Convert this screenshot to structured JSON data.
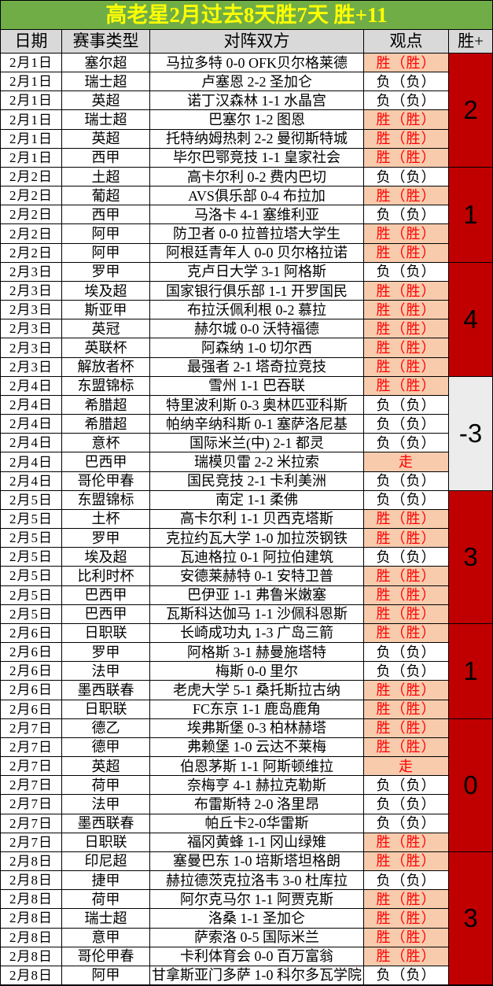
{
  "title": {
    "text": "高老星2月过去8天胜7天 胜+11"
  },
  "columns": {
    "date": "日期",
    "league": "赛事类型",
    "match": "对阵双方",
    "view": "观点",
    "win": "胜+"
  },
  "colors": {
    "title_bg": "#70ad47",
    "title_fg": "#ffff00",
    "header_bg": "#d9d9d9",
    "hit_bg": "#f8cbad",
    "hit_fg": "#ff0000",
    "block_red": "#c00000",
    "block_gray": "#ececec"
  },
  "rows": [
    {
      "date": "2月1日",
      "league": "塞尔超",
      "match": "马拉多特 0-0 OFK贝尔格莱德",
      "view": "胜（胜）",
      "hl": true
    },
    {
      "date": "2月1日",
      "league": "瑞士超",
      "match": "卢塞恩 2-2 圣加仑",
      "view": "负（负）",
      "hl": false
    },
    {
      "date": "2月1日",
      "league": "英超",
      "match": "诺丁汉森林 1-1 水晶宫",
      "view": "负（负）",
      "hl": false
    },
    {
      "date": "2月1日",
      "league": "瑞士超",
      "match": "巴塞尔 1-2 图恩",
      "view": "胜（胜）",
      "hl": true
    },
    {
      "date": "2月1日",
      "league": "英超",
      "match": "托特纳姆热刺 2-2 曼彻斯特城",
      "view": "胜（胜）",
      "hl": true
    },
    {
      "date": "2月1日",
      "league": "西甲",
      "match": "毕尔巴鄂竞技 1-1 皇家社会",
      "view": "胜（胜）",
      "hl": true
    },
    {
      "date": "2月2日",
      "league": "土超",
      "match": "高卡尔利 0-2 费内巴切",
      "view": "负（负）",
      "hl": false
    },
    {
      "date": "2月2日",
      "league": "葡超",
      "match": "AVS俱乐部 0-4 布拉加",
      "view": "胜（胜）",
      "hl": true
    },
    {
      "date": "2月2日",
      "league": "西甲",
      "match": "马洛卡 4-1 塞维利亚",
      "view": "负（负）",
      "hl": false
    },
    {
      "date": "2月2日",
      "league": "阿甲",
      "match": "防卫者 0-0 拉普拉塔大学生",
      "view": "胜（胜）",
      "hl": true
    },
    {
      "date": "2月2日",
      "league": "阿甲",
      "match": "阿根廷青年人 0-0 贝尔格拉诺",
      "view": "胜（胜）",
      "hl": true
    },
    {
      "date": "2月3日",
      "league": "罗甲",
      "match": "克卢日大学 3-1 阿格斯",
      "view": "负（负）",
      "hl": false
    },
    {
      "date": "2月3日",
      "league": "埃及超",
      "match": "国家银行俱乐部 1-1 开罗国民",
      "view": "胜（胜）",
      "hl": true
    },
    {
      "date": "2月3日",
      "league": "斯亚甲",
      "match": "布拉沃佩利根 0-2 慕拉",
      "view": "胜（胜）",
      "hl": true
    },
    {
      "date": "2月3日",
      "league": "英冠",
      "match": "赫尔城 0-0 沃特福德",
      "view": "胜（胜）",
      "hl": true
    },
    {
      "date": "2月3日",
      "league": "英联杯",
      "match": "阿森纳 1-0 切尔西",
      "view": "胜（胜）",
      "hl": true
    },
    {
      "date": "2月3日",
      "league": "解放者杯",
      "match": "最强者 2-1 塔奇拉竞技",
      "view": "胜（胜）",
      "hl": true
    },
    {
      "date": "2月4日",
      "league": "东盟锦标",
      "match": "雪州 1-1 巴吞联",
      "view": "胜（胜）",
      "hl": true
    },
    {
      "date": "2月4日",
      "league": "希腊超",
      "match": "特里波利斯 0-3 奥林匹亚科斯",
      "view": "负（负）",
      "hl": false
    },
    {
      "date": "2月4日",
      "league": "希腊超",
      "match": "帕纳辛纳科斯 0-1 塞萨洛尼基",
      "view": "负（负）",
      "hl": false
    },
    {
      "date": "2月4日",
      "league": "意杯",
      "match": "国际米兰(中) 2-1 都灵",
      "view": "负（负）",
      "hl": false
    },
    {
      "date": "2月4日",
      "league": "巴西甲",
      "match": "瑞模贝雷 2-2 米拉索",
      "view": "走",
      "hl": true
    },
    {
      "date": "2月4日",
      "league": "哥伦甲春",
      "match": "国民竞技 2-1 卡利美洲",
      "view": "负（负）",
      "hl": false
    },
    {
      "date": "2月5日",
      "league": "东盟锦标",
      "match": "南定 1-1 柔佛",
      "view": "负（负）",
      "hl": false
    },
    {
      "date": "2月5日",
      "league": "土杯",
      "match": "高卡尔利 1-1 贝西克塔斯",
      "view": "胜（胜）",
      "hl": true
    },
    {
      "date": "2月5日",
      "league": "罗甲",
      "match": "克拉约瓦大学 1-0 加拉茨钢铁",
      "view": "胜（胜）",
      "hl": true
    },
    {
      "date": "2月5日",
      "league": "埃及超",
      "match": "瓦迪格拉 0-1 阿拉伯建筑",
      "view": "负（负）",
      "hl": false
    },
    {
      "date": "2月5日",
      "league": "比利时杯",
      "match": "安德莱赫特 0-1 安特卫普",
      "view": "胜（胜）",
      "hl": true
    },
    {
      "date": "2月5日",
      "league": "巴西甲",
      "match": "巴伊亚 1-1 弗鲁米嫩塞",
      "view": "胜（胜）",
      "hl": true
    },
    {
      "date": "2月5日",
      "league": "巴西甲",
      "match": "瓦斯科达伽马 1-1 沙佩科恩斯",
      "view": "胜（胜）",
      "hl": true
    },
    {
      "date": "2月6日",
      "league": "日职联",
      "match": "长崎成功丸 1-3 广岛三箭",
      "view": "胜（胜）",
      "hl": true
    },
    {
      "date": "2月6日",
      "league": "罗甲",
      "match": "阿格斯 3-1 赫曼施塔特",
      "view": "负（负）",
      "hl": false
    },
    {
      "date": "2月6日",
      "league": "法甲",
      "match": "梅斯 0-0 里尔",
      "view": "负（负）",
      "hl": false
    },
    {
      "date": "2月6日",
      "league": "墨西联春",
      "match": "老虎大学 5-1 桑托斯拉古纳",
      "view": "胜（胜）",
      "hl": true
    },
    {
      "date": "2月6日",
      "league": "日职联",
      "match": "FC东京 1-1 鹿岛鹿角",
      "view": "胜（胜）",
      "hl": true
    },
    {
      "date": "2月7日",
      "league": "德乙",
      "match": "埃弗斯堡 0-3 柏林赫塔",
      "view": "胜（胜）",
      "hl": true
    },
    {
      "date": "2月7日",
      "league": "德甲",
      "match": "弗赖堡 1-0 云达不莱梅",
      "view": "胜（胜）",
      "hl": true
    },
    {
      "date": "2月7日",
      "league": "英超",
      "match": "伯恩茅斯 1-1 阿斯顿维拉",
      "view": "走",
      "hl": true
    },
    {
      "date": "2月7日",
      "league": "荷甲",
      "match": "奈梅亨 4-1 赫拉克勒斯",
      "view": "负（负）",
      "hl": false
    },
    {
      "date": "2月7日",
      "league": "法甲",
      "match": "布雷斯特 2-0 洛里昂",
      "view": "负（负）",
      "hl": false
    },
    {
      "date": "2月7日",
      "league": "墨西联春",
      "match": "帕丘卡2-0华雷斯",
      "view": "负（负）",
      "hl": false
    },
    {
      "date": "2月7日",
      "league": "日职联",
      "match": "福冈黄蜂 1-1 冈山绿雉",
      "view": "胜（胜）",
      "hl": true
    },
    {
      "date": "2月8日",
      "league": "印尼超",
      "match": "塞曼巴东 1-0 培斯塔坦格朗",
      "view": "胜（胜）",
      "hl": true
    },
    {
      "date": "2月8日",
      "league": "捷甲",
      "match": "赫拉德茨克拉洛韦 3-0 杜库拉",
      "view": "负（负）",
      "hl": false
    },
    {
      "date": "2月8日",
      "league": "荷甲",
      "match": "阿尔克马尔 1-1 阿贾克斯",
      "view": "胜（胜）",
      "hl": true
    },
    {
      "date": "2月8日",
      "league": "瑞士超",
      "match": "洛桑 1-1 圣加仑",
      "view": "胜（胜）",
      "hl": true
    },
    {
      "date": "2月8日",
      "league": "意甲",
      "match": "萨索洛 0-5 国际米兰",
      "view": "胜（胜）",
      "hl": true
    },
    {
      "date": "2月8日",
      "league": "哥伦甲春",
      "match": "卡利体育会 0-0 百万富翁",
      "view": "胜（胜）",
      "hl": true
    },
    {
      "date": "2月8日",
      "league": "阿甲",
      "match": "甘拿斯亚门多萨 1-0 科尔多瓦学院",
      "view": "负（负）",
      "hl": false
    }
  ],
  "score_blocks": [
    {
      "value": "2",
      "span": 6,
      "theme": "red"
    },
    {
      "value": "1",
      "span": 5,
      "theme": "red"
    },
    {
      "value": "4",
      "span": 6,
      "theme": "red"
    },
    {
      "value": "-3",
      "span": 6,
      "theme": "gray"
    },
    {
      "value": "3",
      "span": 7,
      "theme": "red"
    },
    {
      "value": "1",
      "span": 5,
      "theme": "red"
    },
    {
      "value": "0",
      "span": 7,
      "theme": "red"
    },
    {
      "value": "3",
      "span": 7,
      "theme": "red"
    }
  ]
}
